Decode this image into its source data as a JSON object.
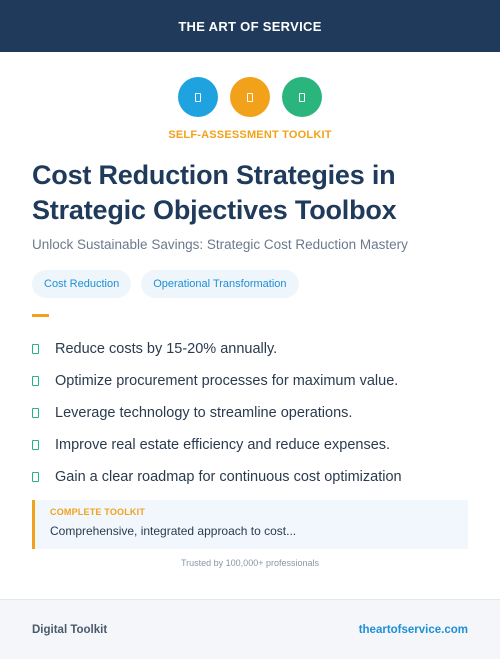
{
  "header": {
    "brand": "THE ART OF SERVICE"
  },
  "icons": [
    {
      "name": "document-icon",
      "color": "#1fa3e0"
    },
    {
      "name": "document-icon",
      "color": "#f2a21a"
    },
    {
      "name": "document-icon",
      "color": "#2ab57d"
    }
  ],
  "kicker": "SELF-ASSESSMENT TOOLKIT",
  "title_line1": "Cost Reduction Strategies in",
  "title_line2": "Strategic Objectives Toolbox",
  "subtitle": "Unlock Sustainable Savings: Strategic Cost Reduction Mastery",
  "tags": [
    "Cost Reduction",
    "Operational Transformation"
  ],
  "benefits": [
    "Reduce costs by 15-20% annually.",
    "Optimize procurement processes for maximum value.",
    "Leverage technology to streamline operations.",
    "Improve real estate efficiency and reduce expenses.",
    "Gain a clear roadmap for continuous cost optimization"
  ],
  "callout": {
    "label": "COMPLETE TOOLKIT",
    "text": "Comprehensive, integrated approach to cost..."
  },
  "trusted": "Trusted by 100,000+ professionals",
  "footer": {
    "left": "Digital Toolkit",
    "right": "theartofservice.com"
  },
  "colors": {
    "navy": "#1f3a5a",
    "blue": "#1fa3e0",
    "orange": "#f2a21a",
    "green": "#2ab57d"
  }
}
